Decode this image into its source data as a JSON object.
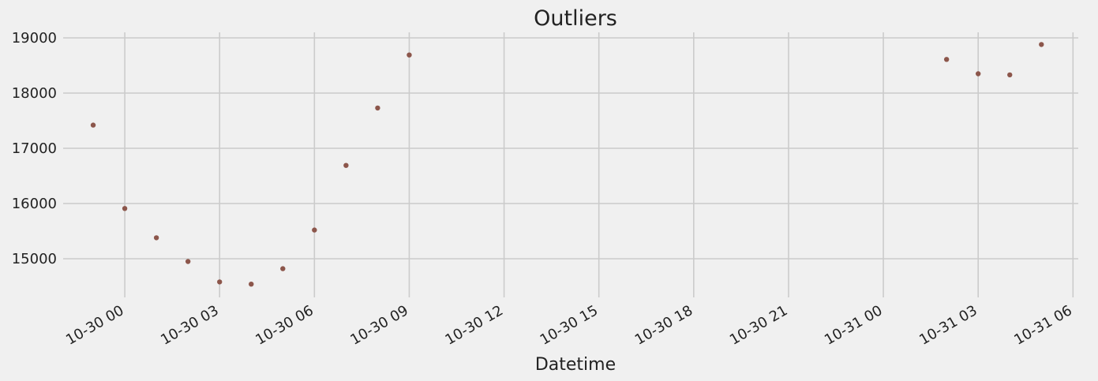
{
  "chart_data": {
    "type": "scatter",
    "title": "Outliers",
    "xlabel": "Datetime",
    "ylabel": "",
    "ylim": [
      14300,
      19100
    ],
    "xlim": [
      "2018-10-29 22:03",
      "2018-10-31 06:10"
    ],
    "grid": true,
    "marker_color": "#8c564b",
    "x_ticks": [
      {
        "t": "2018-10-30 00:00",
        "label": "10-30 00"
      },
      {
        "t": "2018-10-30 03:00",
        "label": "10-30 03"
      },
      {
        "t": "2018-10-30 06:00",
        "label": "10-30 06"
      },
      {
        "t": "2018-10-30 09:00",
        "label": "10-30 09"
      },
      {
        "t": "2018-10-30 12:00",
        "label": "10-30 12"
      },
      {
        "t": "2018-10-30 15:00",
        "label": "10-30 15"
      },
      {
        "t": "2018-10-30 18:00",
        "label": "10-30 18"
      },
      {
        "t": "2018-10-30 21:00",
        "label": "10-30 21"
      },
      {
        "t": "2018-10-31 00:00",
        "label": "10-31 00"
      },
      {
        "t": "2018-10-31 03:00",
        "label": "10-31 03"
      },
      {
        "t": "2018-10-31 06:00",
        "label": "10-31 06"
      }
    ],
    "y_ticks": [
      15000,
      16000,
      17000,
      18000,
      19000
    ],
    "series": [
      {
        "points": [
          {
            "x": "2018-10-29 23:00",
            "y": 17420
          },
          {
            "x": "2018-10-30 00:00",
            "y": 15910
          },
          {
            "x": "2018-10-30 01:00",
            "y": 15380
          },
          {
            "x": "2018-10-30 02:00",
            "y": 14950
          },
          {
            "x": "2018-10-30 03:00",
            "y": 14580
          },
          {
            "x": "2018-10-30 04:00",
            "y": 14540
          },
          {
            "x": "2018-10-30 05:00",
            "y": 14820
          },
          {
            "x": "2018-10-30 06:00",
            "y": 15520
          },
          {
            "x": "2018-10-30 07:00",
            "y": 16690
          },
          {
            "x": "2018-10-30 08:00",
            "y": 17730
          },
          {
            "x": "2018-10-30 09:00",
            "y": 18690
          },
          {
            "x": "2018-10-31 02:00",
            "y": 18610
          },
          {
            "x": "2018-10-31 03:00",
            "y": 18350
          },
          {
            "x": "2018-10-31 04:00",
            "y": 18330
          },
          {
            "x": "2018-10-31 05:00",
            "y": 18880
          }
        ]
      }
    ]
  }
}
